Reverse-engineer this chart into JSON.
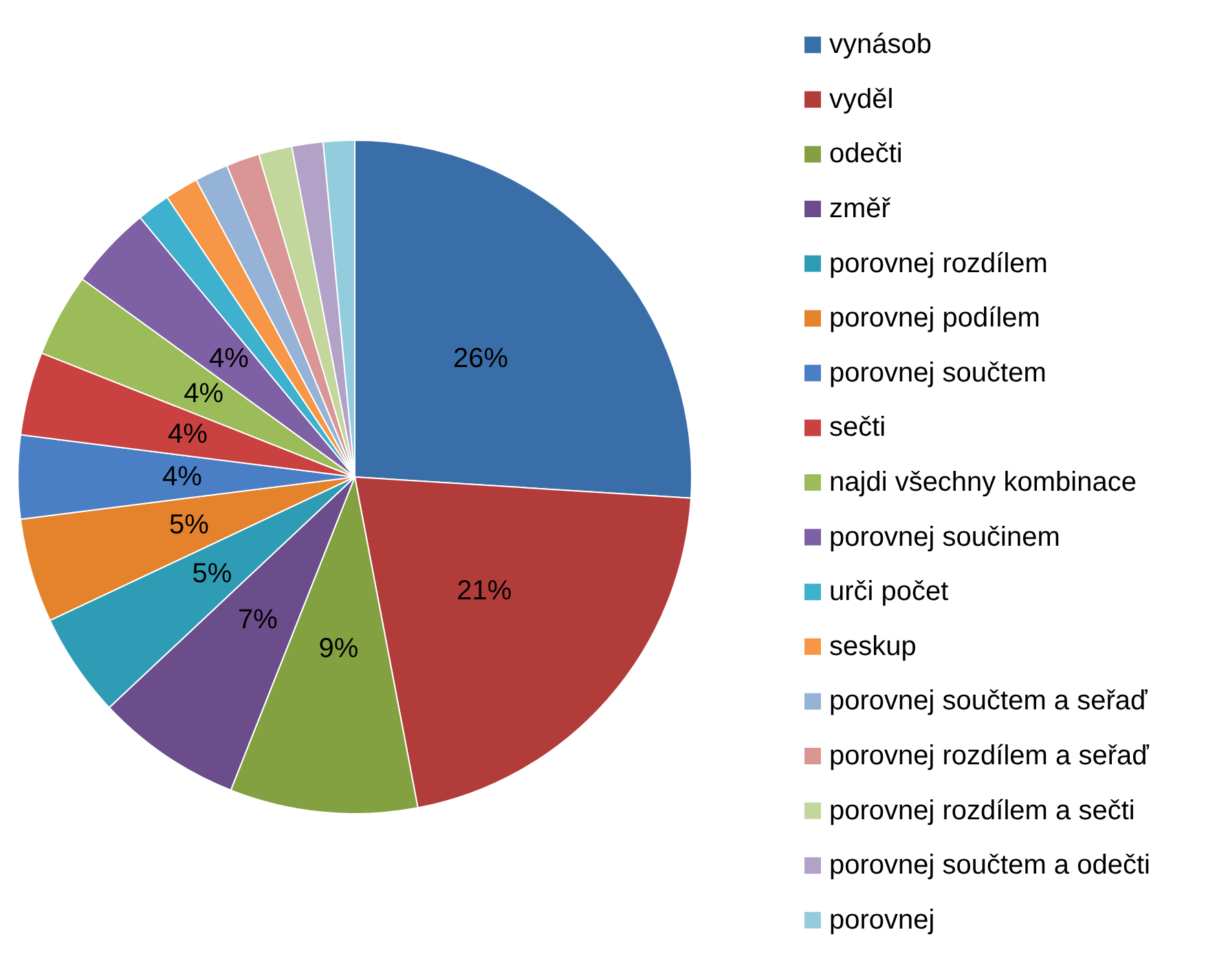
{
  "chart_data": {
    "type": "pie",
    "legend": "right",
    "categories": [
      "vynásob",
      "vyděl",
      "odečti",
      "změř",
      "porovnej rozdílem",
      "porovnej podílem",
      "porovnej součtem",
      "sečti",
      "najdi všechny kombinace",
      "porovnej součinem",
      "urči počet",
      "seskup",
      "porovnej součtem a seřaď",
      "porovnej rozdílem a seřaď",
      "porovnej rozdílem a sečti",
      "porovnej součtem a odečti",
      "porovnej"
    ],
    "values": [
      26,
      21,
      9,
      7,
      5,
      5,
      4,
      4,
      4,
      4,
      1.6,
      1.6,
      1.6,
      1.6,
      1.6,
      1.5,
      1.5
    ],
    "value_labels": [
      "26%",
      "21%",
      "9%",
      "7%",
      "5%",
      "5%",
      "4%",
      "4%",
      "4%",
      "4%",
      null,
      null,
      null,
      null,
      null,
      null,
      null
    ],
    "colors": [
      "#3a6ea8",
      "#b23c39",
      "#84a142",
      "#6b4d8c",
      "#2f9cb6",
      "#e5832c",
      "#4a7fc6",
      "#c9423f",
      "#9cbc59",
      "#7e60a4",
      "#3db1cd",
      "#f79646",
      "#95b3d7",
      "#d99694",
      "#c3d69b",
      "#b3a2c7",
      "#93cddd"
    ]
  }
}
